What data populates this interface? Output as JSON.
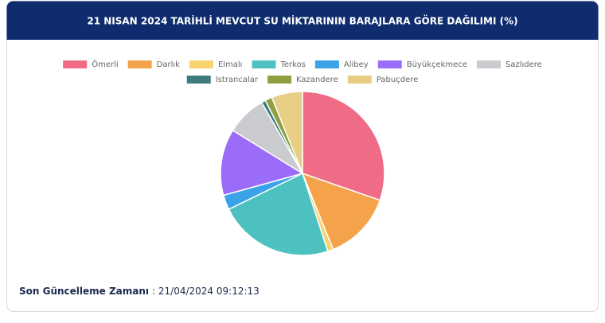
{
  "chart_data": {
    "type": "pie",
    "title": "21 NISAN 2024 TARİHLİ MEVCUT SU MİKTARININ BARAJLARA GÖRE DAĞILIMI (%)",
    "categories": [
      "Ömerli",
      "Darlık",
      "Elmalı",
      "Terkos",
      "Alibey",
      "Büyükçekmece",
      "Sazlıdere",
      "Istrancalar",
      "Kazandere",
      "Pabuçdere"
    ],
    "values": [
      30.3,
      13.6,
      1.1,
      22.8,
      2.9,
      13.1,
      7.9,
      0.8,
      1.4,
      6.1
    ],
    "colors": [
      "#f06b86",
      "#f5a34b",
      "#f7d46e",
      "#4dc1bf",
      "#3aa3e8",
      "#9b6cf8",
      "#cacbce",
      "#3e7b7c",
      "#8e9f3f",
      "#e8cd84"
    ],
    "legend": "top"
  },
  "footer": {
    "label": "Son Güncelleme Zamanı",
    "value": ": 21/04/2024 09:12:13"
  }
}
